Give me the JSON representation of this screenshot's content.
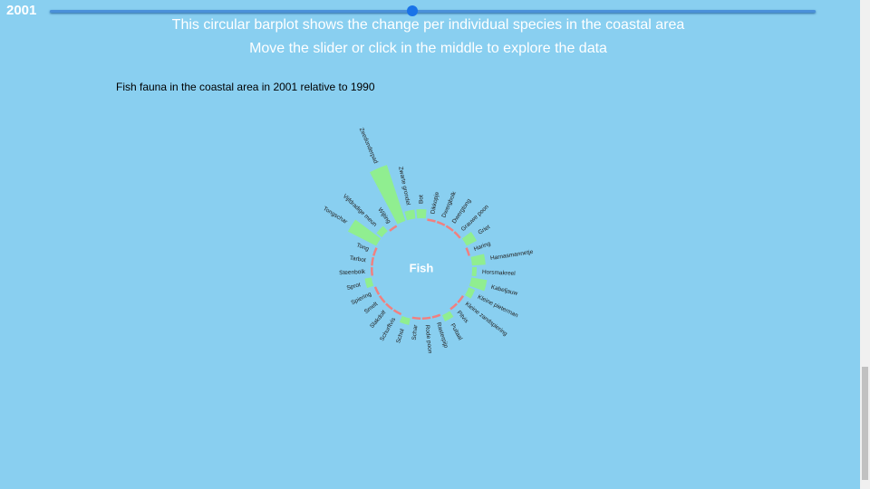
{
  "slider": {
    "year": "2001"
  },
  "header": {
    "line1": "This circular barplot shows the change per individual species in the coastal area",
    "line2": "Move the slider or click in the middle to explore the data"
  },
  "chart_data": {
    "type": "circular_bar",
    "title": "Fish fauna in the coastal area in 2001 relative to 1990",
    "center_label": "Fish",
    "categories": [
      "Bot",
      "Dikkopje",
      "Dwergbolk",
      "Dwergtong",
      "Grauwe poon",
      "Griet",
      "Haring",
      "Harnasmannetje",
      "Horsmakreel",
      "Kabeljauw",
      "Kleine pieterman",
      "Kleine zandspiering",
      "Pitvis",
      "Puitaal",
      "Rasterpijp",
      "Rode poon",
      "Schar",
      "Schol",
      "Schurftvis",
      "Slakdolf",
      "Smelt",
      "Spiering",
      "Sprot",
      "Steenbolk",
      "Tarbot",
      "Tong",
      "Tongschar",
      "Vijfdradige meun",
      "Wijting",
      "Zeedonderpad",
      "Zwarte grondel"
    ],
    "values": [
      20,
      -5,
      -5,
      -5,
      -5,
      25,
      -5,
      30,
      10,
      35,
      15,
      -5,
      -5,
      15,
      -5,
      -5,
      -5,
      15,
      -5,
      -5,
      -5,
      -5,
      15,
      -5,
      -5,
      -5,
      70,
      15,
      -5,
      130,
      20
    ],
    "positive_color": "#90ee90",
    "negative_color": "#f08080"
  }
}
